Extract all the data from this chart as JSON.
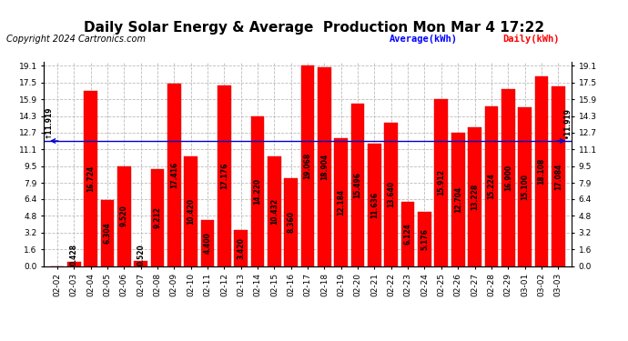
{
  "title": "Daily Solar Energy & Average  Production Mon Mar 4 17:22",
  "copyright": "Copyright 2024 Cartronics.com",
  "legend_average": "Average(kWh)",
  "legend_daily": "Daily(kWh)",
  "average_value": 11.919,
  "categories": [
    "02-02",
    "02-03",
    "02-04",
    "02-05",
    "02-06",
    "02-07",
    "02-08",
    "02-09",
    "02-10",
    "02-11",
    "02-12",
    "02-13",
    "02-14",
    "02-15",
    "02-16",
    "02-17",
    "02-18",
    "02-19",
    "02-20",
    "02-21",
    "02-22",
    "02-23",
    "02-24",
    "02-25",
    "02-26",
    "02-27",
    "02-28",
    "02-29",
    "03-01",
    "03-02",
    "03-03"
  ],
  "values": [
    0.0,
    0.428,
    16.724,
    6.304,
    9.52,
    0.52,
    9.212,
    17.416,
    10.42,
    4.4,
    17.176,
    3.42,
    14.22,
    10.432,
    8.36,
    19.068,
    18.904,
    12.184,
    15.496,
    11.636,
    13.64,
    6.124,
    5.176,
    15.912,
    12.704,
    13.228,
    15.224,
    16.9,
    15.1,
    18.108,
    17.084
  ],
  "bar_color": "#ff0000",
  "average_line_color": "#0000cc",
  "title_color": "#000000",
  "yticks": [
    0.0,
    1.6,
    3.2,
    4.8,
    6.4,
    7.9,
    9.5,
    11.1,
    12.7,
    14.3,
    15.9,
    17.5,
    19.1
  ],
  "ylim": [
    0.0,
    19.5
  ],
  "background_color": "#ffffff",
  "grid_color": "#bbbbbb",
  "bar_value_color": "#000000",
  "title_fontsize": 11,
  "copyright_fontsize": 7,
  "tick_fontsize": 6.5,
  "value_fontsize": 5.5
}
